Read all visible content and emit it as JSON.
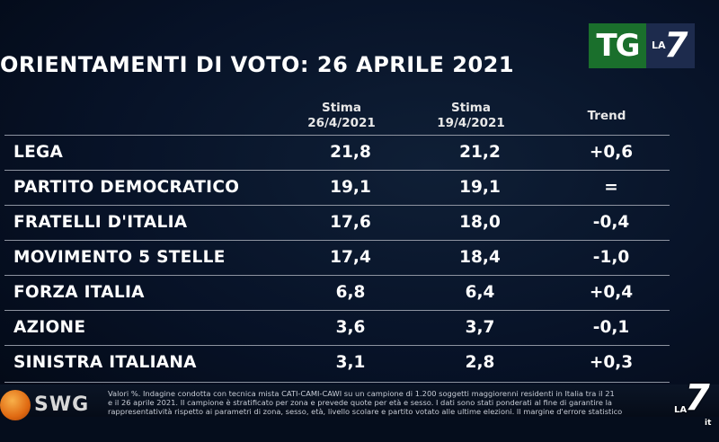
{
  "title": "ORIENTAMENTI DI VOTO: 26 APRILE 2021",
  "logo": {
    "tg": "TG",
    "la": "LA",
    "seven": "7"
  },
  "headers": {
    "col1_line1": "Stima",
    "col1_line2": "26/4/2021",
    "col2_line1": "Stima",
    "col2_line2": "19/4/2021",
    "col3": "Trend"
  },
  "rows": [
    {
      "party": "LEGA",
      "stima_26": "21,8",
      "stima_19": "21,2",
      "trend": "+0,6"
    },
    {
      "party": "PARTITO DEMOCRATICO",
      "stima_26": "19,1",
      "stima_19": "19,1",
      "trend": "="
    },
    {
      "party": "FRATELLI D'ITALIA",
      "stima_26": "17,6",
      "stima_19": "18,0",
      "trend": "-0,4"
    },
    {
      "party": "MOVIMENTO 5 STELLE",
      "stima_26": "17,4",
      "stima_19": "18,4",
      "trend": "-1,0"
    },
    {
      "party": "FORZA ITALIA",
      "stima_26": "6,8",
      "stima_19": "6,4",
      "trend": "+0,4"
    },
    {
      "party": "AZIONE",
      "stima_26": "3,6",
      "stima_19": "3,7",
      "trend": "-0,1"
    },
    {
      "party": "SINISTRA ITALIANA",
      "stima_26": "3,1",
      "stima_19": "2,8",
      "trend": "+0,3"
    }
  ],
  "footer": {
    "brand": "SWG",
    "note_line1": "Valori %. Indagine condotta con tecnica mista CATI-CAMI-CAWI su un campione di 1.200 soggetti maggiorenni residenti in Italia tra il 21",
    "note_line2": "e il 26 aprile 2021. Il campione è stratificato per zona e prevede quote per età e sesso. I dati sono stati ponderati al fine di garantire la",
    "note_line3": "rappresentatività rispetto ai parametri di zona, sesso, età, livello scolare e partito votato alle ultime elezioni. Il margine d'errore statistico",
    "corner_la": "LA",
    "corner_seven": "7",
    "corner_it": "it"
  }
}
